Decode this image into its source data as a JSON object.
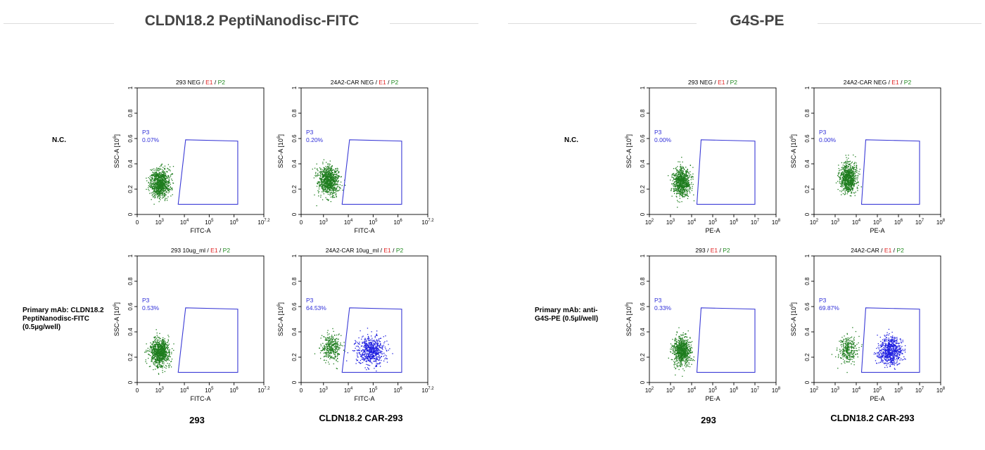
{
  "panels": [
    {
      "title": "CLDN18.2 PeptiNanodisc-FITC",
      "rows": [
        {
          "label_lines": [
            "N.C."
          ]
        },
        {
          "label_lines": [
            "Primary mAb: CLDN18.2",
            "PeptiNanodisc-FITC",
            "(0.5µg/well)"
          ]
        }
      ],
      "columns": [
        "293",
        "CLDN18.2 CAR-293"
      ]
    },
    {
      "title": "G4S-PE",
      "rows": [
        {
          "label_lines": [
            "N.C."
          ]
        },
        {
          "label_lines": [
            "Primary mAb: anti-",
            "G4S-PE (0.5µl/well)"
          ]
        }
      ],
      "columns": [
        "293",
        "CLDN18.2 CAR-293"
      ]
    }
  ],
  "chart_data": [
    {
      "type": "scatter",
      "title_parts": [
        "293 NEG",
        "E1",
        "P2"
      ],
      "xlabel": "FITC-A",
      "ylabel": "SSC-A [10^6]",
      "x_scale": "log",
      "x_ticks": [
        "0",
        "10^3",
        "10^4",
        "10^5",
        "10^6",
        "10^7.2"
      ],
      "y_ticks": [
        "0",
        "0.2",
        "0.4",
        "0.6",
        "0.8",
        "1"
      ],
      "ylim": [
        0,
        1
      ],
      "gate": {
        "name": "P3",
        "percent": "0.07%"
      },
      "populations": [
        {
          "color": "#1e7d1e",
          "x_log": 3.0,
          "y": 0.25,
          "count": 900
        }
      ]
    },
    {
      "type": "scatter",
      "title_parts": [
        "24A2-CAR NEG",
        "E1",
        "P2"
      ],
      "xlabel": "FITC-A",
      "ylabel": "SSC-A [10^6]",
      "x_scale": "log",
      "x_ticks": [
        "0",
        "10^3",
        "10^4",
        "10^5",
        "10^6",
        "10^7.2"
      ],
      "y_ticks": [
        "0",
        "0.2",
        "0.4",
        "0.6",
        "0.8",
        "1"
      ],
      "ylim": [
        0,
        1
      ],
      "gate": {
        "name": "P3",
        "percent": "0.20%"
      },
      "populations": [
        {
          "color": "#1e7d1e",
          "x_log": 3.2,
          "y": 0.27,
          "count": 900
        }
      ]
    },
    {
      "type": "scatter",
      "title_parts": [
        "293 10ug_ml",
        "E1",
        "P2"
      ],
      "xlabel": "FITC-A",
      "ylabel": "SSC-A [10^6]",
      "x_scale": "log",
      "x_ticks": [
        "0",
        "10^3",
        "10^4",
        "10^5",
        "10^6",
        "10^7.2"
      ],
      "y_ticks": [
        "0",
        "0.2",
        "0.4",
        "0.6",
        "0.8",
        "1"
      ],
      "ylim": [
        0,
        1
      ],
      "gate": {
        "name": "P3",
        "percent": "0.53%"
      },
      "populations": [
        {
          "color": "#1e7d1e",
          "x_log": 3.0,
          "y": 0.24,
          "count": 900
        }
      ]
    },
    {
      "type": "scatter",
      "title_parts": [
        "24A2-CAR 10ug_ml",
        "E1",
        "P2"
      ],
      "xlabel": "FITC-A",
      "ylabel": "SSC-A [10^6]",
      "x_scale": "log",
      "x_ticks": [
        "0",
        "10^3",
        "10^4",
        "10^5",
        "10^6",
        "10^7.2"
      ],
      "y_ticks": [
        "0",
        "0.2",
        "0.4",
        "0.6",
        "0.8",
        "1"
      ],
      "ylim": [
        0,
        1
      ],
      "gate": {
        "name": "P3",
        "percent": "64.53%"
      },
      "populations": [
        {
          "color": "#1e7d1e",
          "x_log": 3.3,
          "y": 0.28,
          "count": 350
        },
        {
          "color": "#1f1fe0",
          "x_log": 4.9,
          "y": 0.25,
          "count": 650
        }
      ]
    },
    {
      "type": "scatter",
      "title_parts": [
        "293 NEG",
        "E1",
        "P2"
      ],
      "xlabel": "PE-A",
      "ylabel": "SSC-A [10^6]",
      "x_scale": "log",
      "x_ticks": [
        "10^2",
        "10^3",
        "10^4",
        "10^5",
        "10^6",
        "10^7",
        "10^8"
      ],
      "y_ticks": [
        "0",
        "0.2",
        "0.4",
        "0.6",
        "0.8",
        "1"
      ],
      "ylim": [
        0,
        1
      ],
      "gate": {
        "name": "P3",
        "percent": "0.00%"
      },
      "populations": [
        {
          "color": "#1e7d1e",
          "x_log": 3.5,
          "y": 0.26,
          "count": 800
        }
      ]
    },
    {
      "type": "scatter",
      "title_parts": [
        "24A2-CAR NEG",
        "E1",
        "P2"
      ],
      "xlabel": "PE-A",
      "ylabel": "SSC-A [10^6]",
      "x_scale": "log",
      "x_ticks": [
        "10^2",
        "10^3",
        "10^4",
        "10^5",
        "10^6",
        "10^7",
        "10^8"
      ],
      "y_ticks": [
        "0",
        "0.2",
        "0.4",
        "0.6",
        "0.8",
        "1"
      ],
      "ylim": [
        0,
        1
      ],
      "gate": {
        "name": "P3",
        "percent": "0.00%"
      },
      "populations": [
        {
          "color": "#1e7d1e",
          "x_log": 3.6,
          "y": 0.29,
          "count": 800
        }
      ]
    },
    {
      "type": "scatter",
      "title_parts": [
        "293",
        "E1",
        "P2"
      ],
      "xlabel": "PE-A",
      "ylabel": "SSC-A [10^6]",
      "x_scale": "log",
      "x_ticks": [
        "10^2",
        "10^3",
        "10^4",
        "10^5",
        "10^6",
        "10^7",
        "10^8"
      ],
      "y_ticks": [
        "0",
        "0.2",
        "0.4",
        "0.6",
        "0.8",
        "1"
      ],
      "ylim": [
        0,
        1
      ],
      "gate": {
        "name": "P3",
        "percent": "0.33%"
      },
      "populations": [
        {
          "color": "#1e7d1e",
          "x_log": 3.5,
          "y": 0.25,
          "count": 800
        }
      ]
    },
    {
      "type": "scatter",
      "title_parts": [
        "24A2-CAR",
        "E1",
        "P2"
      ],
      "xlabel": "PE-A",
      "ylabel": "SSC-A [10^6]",
      "x_scale": "log",
      "x_ticks": [
        "10^2",
        "10^3",
        "10^4",
        "10^5",
        "10^6",
        "10^7",
        "10^8"
      ],
      "y_ticks": [
        "0",
        "0.2",
        "0.4",
        "0.6",
        "0.8",
        "1"
      ],
      "ylim": [
        0,
        1
      ],
      "gate": {
        "name": "P3",
        "percent": "69.87%"
      },
      "populations": [
        {
          "color": "#1e7d1e",
          "x_log": 3.6,
          "y": 0.26,
          "count": 300
        },
        {
          "color": "#1f1fe0",
          "x_log": 5.6,
          "y": 0.25,
          "count": 700
        }
      ]
    }
  ],
  "colors": {
    "gate": "#3a3ad6",
    "gate_label": "#2f2fd9",
    "e1": "#e02020",
    "p2": "#1f8a1f",
    "title": "#444444"
  }
}
